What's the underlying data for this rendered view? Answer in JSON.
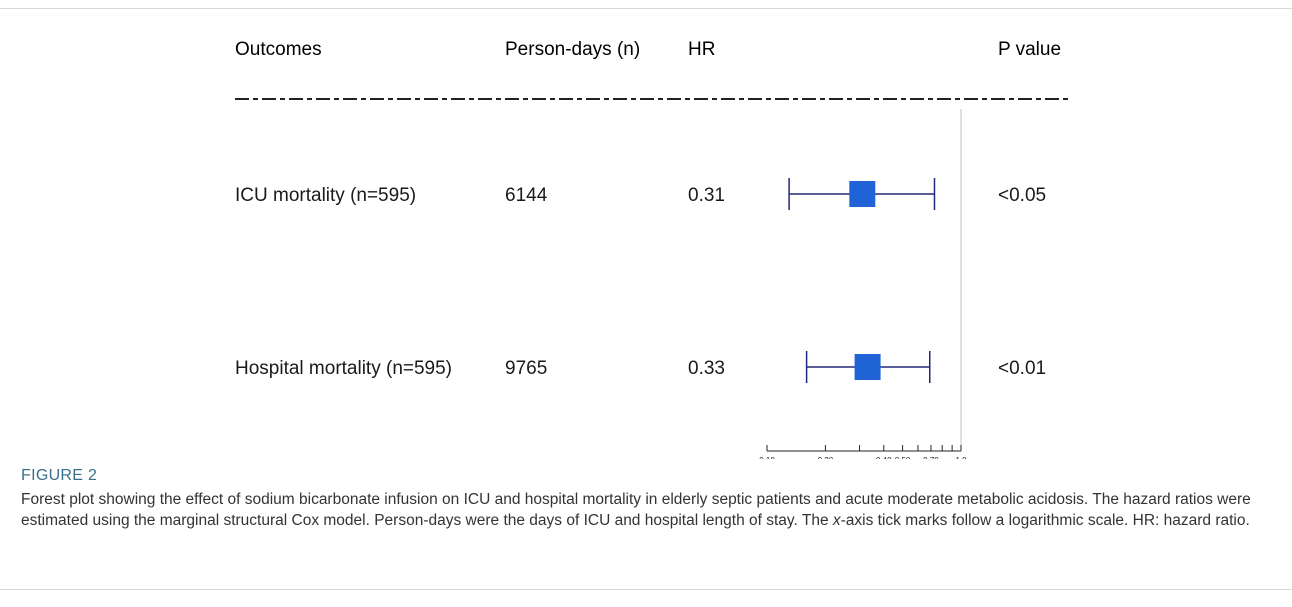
{
  "figure": {
    "label": "FIGURE 2",
    "caption_before_x": "Forest plot showing the effect of sodium bicarbonate infusion on ICU and hospital mortality in elderly septic patients and acute moderate metabolic acidosis. The hazard ratios were estimated using the marginal structural Cox model. Person-days were the days of ICU and hospital length of stay. The ",
    "caption_x": "x",
    "caption_after_x": "-axis tick marks follow a logarithmic scale. HR: hazard ratio."
  },
  "chart_data": {
    "type": "forest",
    "headers": {
      "outcome": "Outcomes",
      "person_days": "Person-days (n)",
      "hr": "HR",
      "p_value": "P value"
    },
    "rows": [
      {
        "outcome": "ICU mortality (n=595)",
        "person_days": "6144",
        "hr_label": "0.31",
        "hr": 0.31,
        "ci_low": 0.13,
        "ci_high": 0.73,
        "p_value": "<0.05"
      },
      {
        "outcome": "Hospital mortality (n=595)",
        "person_days": "9765",
        "hr_label": "0.33",
        "hr": 0.33,
        "ci_low": 0.16,
        "ci_high": 0.69,
        "p_value": "<0.01"
      }
    ],
    "x_scale": "log",
    "x_ticks": [
      0.1,
      0.2,
      0.3,
      0.4,
      0.5,
      0.6,
      0.7,
      0.8,
      0.9,
      1.0
    ],
    "x_tick_labels": [
      {
        "value": 0.1,
        "label": "0.10"
      },
      {
        "value": 0.2,
        "label": "0.20"
      },
      {
        "value": 0.4,
        "label": "0.40"
      },
      {
        "value": 0.5,
        "label": "0.50"
      },
      {
        "value": 0.7,
        "label": "0.70"
      },
      {
        "value": 1.0,
        "label": "1.0"
      }
    ],
    "xlim": [
      0.1,
      1.0
    ],
    "reference_line": 1.0,
    "colors": {
      "box": "#1f63d6",
      "ci": "#23297a",
      "text": "#1a1a1a",
      "reference": "#cccccc",
      "axis": "#222222"
    }
  }
}
